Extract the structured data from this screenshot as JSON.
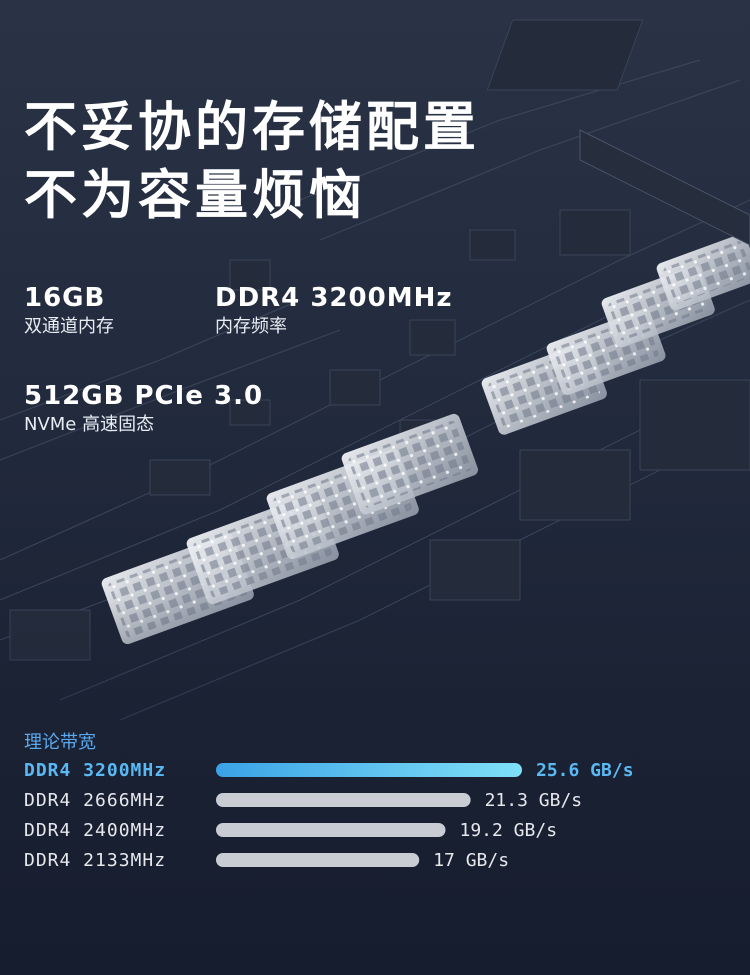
{
  "headline": {
    "line1": "不妥协的存储配置",
    "line2": "不为容量烦恼"
  },
  "specs": [
    {
      "value": "16GB",
      "label": "双通道内存"
    },
    {
      "value": "DDR4 3200MHz",
      "label": "内存频率"
    },
    {
      "value": "512GB PCIe 3.0",
      "label": "NVMe 高速固态"
    }
  ],
  "chart_data": {
    "type": "bar",
    "orientation": "horizontal",
    "title": "理论带宽",
    "categories": [
      "DDR4 3200MHz",
      "DDR4 2666MHz",
      "DDR4 2400MHz",
      "DDR4 2133MHz"
    ],
    "values": [
      25.6,
      21.3,
      19.2,
      17
    ],
    "value_labels": [
      "25.6 GB/s",
      "21.3 GB/s",
      "19.2 GB/s",
      "17 GB/s"
    ],
    "highlight_index": 0,
    "grid": false,
    "colors": {
      "highlight_start": "#3ba3e6",
      "highlight_end": "#7fe0f7",
      "highlight_text": "#5ab8f3",
      "bar": "#c9ccd2",
      "text": "#e6e8ec"
    }
  }
}
